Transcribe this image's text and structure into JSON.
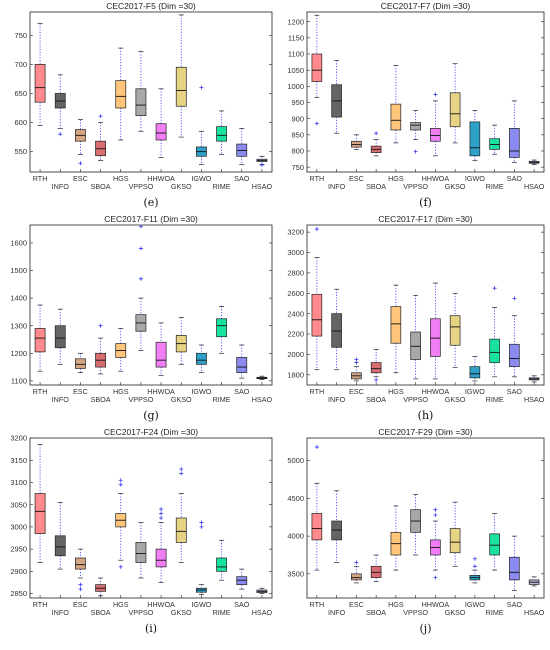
{
  "chart_data": [
    {
      "type": "boxplot",
      "title": "CEC2017-F5 (Dim =30)",
      "caption": "(e)",
      "categories": [
        "RTH",
        "INFO",
        "ESC",
        "SBOA",
        "HGS",
        "VPPSO",
        "HHWOA",
        "GKSO",
        "IGWO",
        "RIME",
        "SAO",
        "HSAO"
      ],
      "ylim": [
        515,
        790
      ],
      "yticks": [
        550,
        600,
        650,
        700,
        750
      ],
      "boxes": [
        {
          "min": 595,
          "q1": 635,
          "median": 660,
          "q3": 700,
          "max": 770,
          "outliers": []
        },
        {
          "min": 590,
          "q1": 625,
          "median": 637,
          "q3": 650,
          "max": 682,
          "outliers": [
            580
          ]
        },
        {
          "min": 545,
          "q1": 568,
          "median": 578,
          "q3": 588,
          "max": 605,
          "outliers": [
            530
          ]
        },
        {
          "min": 535,
          "q1": 543,
          "median": 555,
          "q3": 568,
          "max": 600,
          "outliers": [
            611
          ]
        },
        {
          "min": 570,
          "q1": 625,
          "median": 645,
          "q3": 672,
          "max": 728,
          "outliers": []
        },
        {
          "min": 585,
          "q1": 612,
          "median": 630,
          "q3": 658,
          "max": 722,
          "outliers": []
        },
        {
          "min": 540,
          "q1": 570,
          "median": 582,
          "q3": 598,
          "max": 658,
          "outliers": []
        },
        {
          "min": 575,
          "q1": 628,
          "median": 655,
          "q3": 695,
          "max": 785,
          "outliers": []
        },
        {
          "min": 528,
          "q1": 542,
          "median": 550,
          "q3": 558,
          "max": 585,
          "outliers": [
            660
          ]
        },
        {
          "min": 545,
          "q1": 568,
          "median": 578,
          "q3": 593,
          "max": 620,
          "outliers": []
        },
        {
          "min": 528,
          "q1": 542,
          "median": 552,
          "q3": 563,
          "max": 590,
          "outliers": []
        },
        {
          "min": 528,
          "q1": 533,
          "median": 535,
          "q3": 537,
          "max": 542,
          "outliers": [
            527
          ]
        }
      ]
    },
    {
      "type": "boxplot",
      "title": "CEC2017-F7 (Dim =30)",
      "caption": "(f)",
      "categories": [
        "RTH",
        "INFO",
        "ESC",
        "SBOA",
        "HGS",
        "VPPSO",
        "HHWOA",
        "GKSO",
        "IGWO",
        "RIME",
        "SAO",
        "HSAO"
      ],
      "ylim": [
        735,
        1230
      ],
      "yticks": [
        750,
        800,
        850,
        900,
        950,
        1000,
        1050,
        1100,
        1150,
        1200
      ],
      "boxes": [
        {
          "min": 965,
          "q1": 1015,
          "median": 1050,
          "q3": 1100,
          "max": 1220,
          "outliers": [
            885
          ]
        },
        {
          "min": 855,
          "q1": 905,
          "median": 955,
          "q3": 1005,
          "max": 1080,
          "outliers": []
        },
        {
          "min": 805,
          "q1": 812,
          "median": 820,
          "q3": 830,
          "max": 850,
          "outliers": []
        },
        {
          "min": 785,
          "q1": 795,
          "median": 805,
          "q3": 815,
          "max": 835,
          "outliers": [
            855
          ]
        },
        {
          "min": 825,
          "q1": 865,
          "median": 895,
          "q3": 945,
          "max": 1065,
          "outliers": []
        },
        {
          "min": 835,
          "q1": 865,
          "median": 880,
          "q3": 888,
          "max": 925,
          "outliers": [
            798
          ]
        },
        {
          "min": 785,
          "q1": 830,
          "median": 848,
          "q3": 870,
          "max": 955,
          "outliers": [
            975
          ]
        },
        {
          "min": 825,
          "q1": 875,
          "median": 915,
          "q3": 980,
          "max": 1070,
          "outliers": []
        },
        {
          "min": 770,
          "q1": 785,
          "median": 810,
          "q3": 890,
          "max": 925,
          "outliers": []
        },
        {
          "min": 790,
          "q1": 805,
          "median": 820,
          "q3": 838,
          "max": 880,
          "outliers": []
        },
        {
          "min": 765,
          "q1": 780,
          "median": 800,
          "q3": 870,
          "max": 955,
          "outliers": []
        },
        {
          "min": 758,
          "q1": 762,
          "median": 765,
          "q3": 768,
          "max": 772,
          "outliers": []
        }
      ]
    },
    {
      "type": "boxplot",
      "title": "CEC2017-F11 (Dim =30)",
      "caption": "(g)",
      "categories": [
        "RTH",
        "INFO",
        "ESC",
        "SBOA",
        "HGS",
        "VPPSO",
        "HHWOA",
        "GKSO",
        "IGWO",
        "RIME",
        "SAO",
        "HSAO"
      ],
      "ylim": [
        1085,
        1665
      ],
      "yticks": [
        1100,
        1200,
        1300,
        1400,
        1500,
        1600
      ],
      "boxes": [
        {
          "min": 1135,
          "q1": 1205,
          "median": 1255,
          "q3": 1290,
          "max": 1375,
          "outliers": []
        },
        {
          "min": 1160,
          "q1": 1220,
          "median": 1255,
          "q3": 1300,
          "max": 1360,
          "outliers": []
        },
        {
          "min": 1130,
          "q1": 1145,
          "median": 1160,
          "q3": 1180,
          "max": 1200,
          "outliers": []
        },
        {
          "min": 1125,
          "q1": 1150,
          "median": 1175,
          "q3": 1200,
          "max": 1255,
          "outliers": [
            1300
          ]
        },
        {
          "min": 1135,
          "q1": 1185,
          "median": 1210,
          "q3": 1235,
          "max": 1290,
          "outliers": []
        },
        {
          "min": 1210,
          "q1": 1280,
          "median": 1310,
          "q3": 1340,
          "max": 1400,
          "outliers": [
            1660,
            1580,
            1470
          ]
        },
        {
          "min": 1120,
          "q1": 1150,
          "median": 1175,
          "q3": 1240,
          "max": 1310,
          "outliers": []
        },
        {
          "min": 1160,
          "q1": 1205,
          "median": 1235,
          "q3": 1265,
          "max": 1330,
          "outliers": []
        },
        {
          "min": 1130,
          "q1": 1160,
          "median": 1175,
          "q3": 1200,
          "max": 1230,
          "outliers": []
        },
        {
          "min": 1200,
          "q1": 1260,
          "median": 1300,
          "q3": 1325,
          "max": 1370,
          "outliers": []
        },
        {
          "min": 1110,
          "q1": 1130,
          "median": 1150,
          "q3": 1185,
          "max": 1230,
          "outliers": []
        },
        {
          "min": 1105,
          "q1": 1108,
          "median": 1110,
          "q3": 1113,
          "max": 1117,
          "outliers": []
        }
      ]
    },
    {
      "type": "boxplot",
      "title": "CEC2017-F17 (Dim =30)",
      "caption": "(h)",
      "categories": [
        "RTH",
        "INFO",
        "ESC",
        "SBOA",
        "HGS",
        "VPPSO",
        "HHWOA",
        "GKSO",
        "IGWO",
        "RIME",
        "SAO",
        "HSAO"
      ],
      "ylim": [
        1700,
        3270
      ],
      "yticks": [
        1800,
        2000,
        2200,
        2400,
        2600,
        2800,
        3000,
        3200
      ],
      "boxes": [
        {
          "min": 1850,
          "q1": 2180,
          "median": 2340,
          "q3": 2590,
          "max": 2950,
          "outliers": [
            3230
          ]
        },
        {
          "min": 1850,
          "q1": 2070,
          "median": 2230,
          "q3": 2400,
          "max": 2640,
          "outliers": []
        },
        {
          "min": 1740,
          "q1": 1760,
          "median": 1790,
          "q3": 1820,
          "max": 1880,
          "outliers": [
            1920,
            1950
          ]
        },
        {
          "min": 1780,
          "q1": 1820,
          "median": 1860,
          "q3": 1920,
          "max": 2050,
          "outliers": [
            1750
          ]
        },
        {
          "min": 1820,
          "q1": 2110,
          "median": 2300,
          "q3": 2470,
          "max": 2680,
          "outliers": []
        },
        {
          "min": 1760,
          "q1": 1950,
          "median": 2080,
          "q3": 2220,
          "max": 2580,
          "outliers": []
        },
        {
          "min": 1760,
          "q1": 1980,
          "median": 2160,
          "q3": 2350,
          "max": 2700,
          "outliers": []
        },
        {
          "min": 1870,
          "q1": 2090,
          "median": 2270,
          "q3": 2380,
          "max": 2600,
          "outliers": []
        },
        {
          "min": 1740,
          "q1": 1770,
          "median": 1810,
          "q3": 1880,
          "max": 1980,
          "outliers": []
        },
        {
          "min": 1780,
          "q1": 1920,
          "median": 2020,
          "q3": 2150,
          "max": 2460,
          "outliers": [
            2650
          ]
        },
        {
          "min": 1780,
          "q1": 1880,
          "median": 1960,
          "q3": 2100,
          "max": 2380,
          "outliers": [
            2550
          ]
        },
        {
          "min": 1730,
          "q1": 1750,
          "median": 1760,
          "q3": 1770,
          "max": 1790,
          "outliers": []
        }
      ]
    },
    {
      "type": "boxplot",
      "title": "CEC2017-F24 (Dim =30)",
      "caption": "(i)",
      "categories": [
        "RTH",
        "INFO",
        "ESC",
        "SBOA",
        "HGS",
        "VPPSO",
        "HHWOA",
        "GKSO",
        "IGWO",
        "RIME",
        "SAO",
        "HSAO"
      ],
      "ylim": [
        2840,
        3200
      ],
      "yticks": [
        2850,
        2900,
        2950,
        3000,
        3050,
        3100,
        3150,
        3200
      ],
      "boxes": [
        {
          "min": 2920,
          "q1": 2985,
          "median": 3035,
          "q3": 3075,
          "max": 3185,
          "outliers": []
        },
        {
          "min": 2905,
          "q1": 2935,
          "median": 2955,
          "q3": 2980,
          "max": 3055,
          "outliers": []
        },
        {
          "min": 2885,
          "q1": 2905,
          "median": 2915,
          "q3": 2930,
          "max": 2950,
          "outliers": [
            2870,
            2860
          ]
        },
        {
          "min": 2845,
          "q1": 2855,
          "median": 2862,
          "q3": 2870,
          "max": 2885,
          "outliers": []
        },
        {
          "min": 2925,
          "q1": 3000,
          "median": 3015,
          "q3": 3030,
          "max": 3075,
          "outliers": [
            3105,
            3095,
            2910
          ]
        },
        {
          "min": 2885,
          "q1": 2920,
          "median": 2940,
          "q3": 2965,
          "max": 3010,
          "outliers": []
        },
        {
          "min": 2875,
          "q1": 2910,
          "median": 2925,
          "q3": 2950,
          "max": 3010,
          "outliers": [
            3040,
            3030,
            3020
          ]
        },
        {
          "min": 2920,
          "q1": 2965,
          "median": 2990,
          "q3": 3020,
          "max": 3075,
          "outliers": [
            3130,
            3120
          ]
        },
        {
          "min": 2848,
          "q1": 2853,
          "median": 2858,
          "q3": 2862,
          "max": 2870,
          "outliers": [
            3000,
            3010
          ]
        },
        {
          "min": 2880,
          "q1": 2900,
          "median": 2910,
          "q3": 2930,
          "max": 2970,
          "outliers": []
        },
        {
          "min": 2860,
          "q1": 2870,
          "median": 2880,
          "q3": 2888,
          "max": 2905,
          "outliers": []
        },
        {
          "min": 2850,
          "q1": 2852,
          "median": 2855,
          "q3": 2858,
          "max": 2862,
          "outliers": []
        }
      ]
    },
    {
      "type": "boxplot",
      "title": "CEC2017-F29 (Dim =30)",
      "caption": "(j)",
      "categories": [
        "RTH",
        "INFO",
        "ESC",
        "SBOA",
        "HGS",
        "VPPSO",
        "HHWOA",
        "GKSO",
        "IGWO",
        "RIME",
        "SAO",
        "HSAO"
      ],
      "ylim": [
        3180,
        5300
      ],
      "yticks": [
        3500,
        4000,
        4500,
        5000
      ],
      "boxes": [
        {
          "min": 3550,
          "q1": 3950,
          "median": 4100,
          "q3": 4300,
          "max": 4700,
          "outliers": [
            5180
          ]
        },
        {
          "min": 3650,
          "q1": 3950,
          "median": 4080,
          "q3": 4200,
          "max": 4600,
          "outliers": []
        },
        {
          "min": 3380,
          "q1": 3420,
          "median": 3450,
          "q3": 3500,
          "max": 3600,
          "outliers": [
            3650
          ]
        },
        {
          "min": 3400,
          "q1": 3450,
          "median": 3520,
          "q3": 3600,
          "max": 3750,
          "outliers": []
        },
        {
          "min": 3550,
          "q1": 3750,
          "median": 3900,
          "q3": 4050,
          "max": 4400,
          "outliers": []
        },
        {
          "min": 3750,
          "q1": 4050,
          "median": 4200,
          "q3": 4350,
          "max": 4550,
          "outliers": []
        },
        {
          "min": 3550,
          "q1": 3750,
          "median": 3850,
          "q3": 3950,
          "max": 4200,
          "outliers": [
            4280,
            4350,
            3450
          ]
        },
        {
          "min": 3600,
          "q1": 3780,
          "median": 3920,
          "q3": 4100,
          "max": 4450,
          "outliers": []
        },
        {
          "min": 3380,
          "q1": 3420,
          "median": 3450,
          "q3": 3480,
          "max": 3550,
          "outliers": [
            3600,
            3700
          ]
        },
        {
          "min": 3550,
          "q1": 3750,
          "median": 3880,
          "q3": 4030,
          "max": 4300,
          "outliers": []
        },
        {
          "min": 3280,
          "q1": 3420,
          "median": 3520,
          "q3": 3720,
          "max": 4000,
          "outliers": []
        },
        {
          "min": 3340,
          "q1": 3360,
          "median": 3390,
          "q3": 3420,
          "max": 3460,
          "outliers": []
        }
      ]
    }
  ],
  "colors": [
    "#fe8a8d",
    "#646464",
    "#d4a583",
    "#d86d71",
    "#ffc57b",
    "#a8a8a8",
    "#f27ef5",
    "#e6d384",
    "#2fa0c8",
    "#19e2a0",
    "#8b8af0",
    "#b2b2cb"
  ]
}
